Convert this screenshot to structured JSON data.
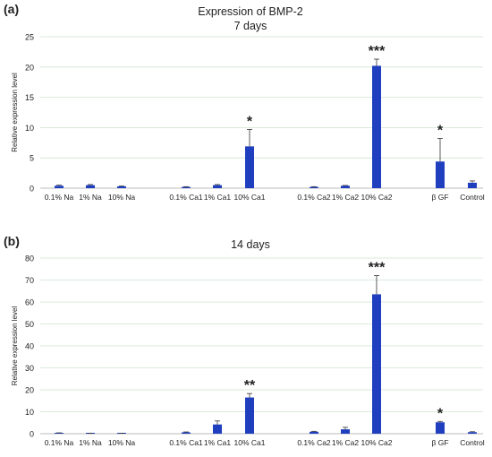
{
  "figure_title": "Expression of BMP-2",
  "colors": {
    "bar": "#1f3fbf",
    "grid": "#cfe3cf",
    "axis": "#bbbbbb",
    "text": "#222222"
  },
  "chart_data": [
    {
      "type": "bar",
      "panel_label": "(a)",
      "title": "7 days",
      "ylabel": "Relative expression level",
      "xlabel": "",
      "ylim": [
        0,
        25
      ],
      "yticks": [
        0,
        5,
        10,
        15,
        20,
        25
      ],
      "grid": true,
      "categories": [
        "0.1% Na",
        "1% Na",
        "10% Na",
        "0.1% Ca1",
        "1% Ca1",
        "10% Ca1",
        "0.1% Ca2",
        "1% Ca2",
        "10% Ca2",
        "β GF",
        "Control"
      ],
      "values": [
        0.4,
        0.5,
        0.3,
        0.2,
        0.5,
        6.9,
        0.2,
        0.4,
        20.2,
        4.4,
        0.9
      ],
      "errors": [
        0.1,
        0.1,
        0.05,
        0.05,
        0.1,
        2.8,
        0.05,
        0.05,
        1.1,
        3.8,
        0.3
      ],
      "significance": [
        "",
        "",
        "",
        "",
        "",
        "*",
        "",
        "",
        "***",
        "*",
        ""
      ]
    },
    {
      "type": "bar",
      "panel_label": "(b)",
      "title": "14 days",
      "ylabel": "Relative expression level",
      "xlabel": "",
      "ylim": [
        0,
        80
      ],
      "yticks": [
        0,
        10,
        20,
        30,
        40,
        50,
        60,
        70,
        80
      ],
      "grid": true,
      "categories": [
        "0.1% Na",
        "1% Na",
        "10% Na",
        "0.1% Ca1",
        "1% Ca1",
        "10% Ca1",
        "0.1% Ca2",
        "1% Ca2",
        "10% Ca2",
        "β GF",
        "Control"
      ],
      "values": [
        0.3,
        0.1,
        0.2,
        0.6,
        4.2,
        16.5,
        0.9,
        2.0,
        63.5,
        5.2,
        0.7
      ],
      "errors": [
        0.1,
        0.05,
        0.05,
        0.2,
        1.6,
        1.8,
        0.2,
        0.9,
        8.5,
        0.4,
        0.2
      ],
      "significance": [
        "",
        "",
        "",
        "",
        "",
        "**",
        "",
        "",
        "***",
        "*",
        ""
      ]
    }
  ]
}
